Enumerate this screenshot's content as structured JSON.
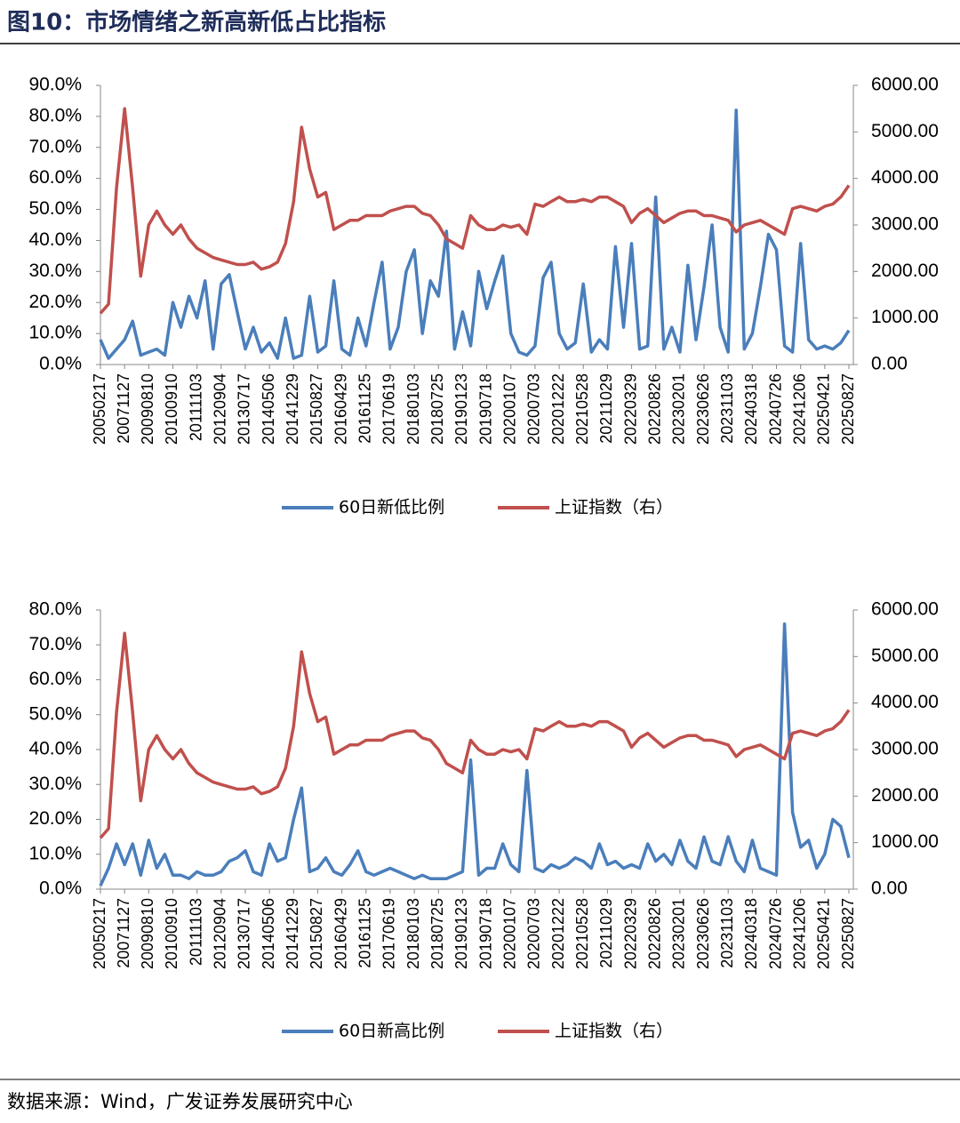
{
  "title": "图10：市场情绪之新高新低占比指标",
  "source": "数据来源：Wind，广发证券发展研究中心",
  "chart_data": [
    {
      "type": "line",
      "categories": [
        "20050217",
        null,
        null,
        "20071127",
        null,
        null,
        "20090810",
        null,
        null,
        "20100910",
        null,
        null,
        "20111103",
        null,
        null,
        "20120904",
        null,
        null,
        "20130717",
        null,
        null,
        "20140506",
        null,
        null,
        "20141229",
        null,
        null,
        "20150827",
        null,
        null,
        "20160429",
        null,
        null,
        "20161125",
        null,
        null,
        "20170619",
        null,
        null,
        "20180103",
        null,
        null,
        "20180725",
        null,
        null,
        "20190123",
        null,
        null,
        "20190718",
        null,
        null,
        "20200107",
        null,
        null,
        "20200703",
        null,
        null,
        "20201222",
        null,
        null,
        "20210528",
        null,
        null,
        "20211029",
        null,
        null,
        "20220329",
        null,
        null,
        "20220826",
        null,
        null,
        "20230201",
        null,
        null,
        "20230626",
        null,
        null,
        "20231103",
        null,
        null,
        "20240318",
        null,
        null,
        "20240726",
        null,
        null,
        "20241206",
        null,
        null,
        "20250421",
        null,
        null,
        "20250827"
      ],
      "series": [
        {
          "name": "60日新低比例",
          "color": "#4a7ebb",
          "axis": "y",
          "values": [
            8,
            2,
            5,
            8,
            14,
            3,
            4,
            5,
            3,
            20,
            12,
            22,
            15,
            27,
            5,
            26,
            29,
            17,
            5,
            12,
            4,
            7,
            2,
            15,
            2,
            3,
            22,
            4,
            6,
            27,
            5,
            3,
            15,
            6,
            20,
            33,
            5,
            12,
            30,
            37,
            10,
            27,
            22,
            43,
            5,
            17,
            6,
            30,
            18,
            27,
            35,
            10,
            4,
            3,
            6,
            28,
            33,
            10,
            5,
            7,
            26,
            4,
            8,
            5,
            38,
            12,
            39,
            5,
            6,
            54,
            5,
            12,
            4,
            32,
            8,
            25,
            45,
            12,
            4,
            82,
            5,
            10,
            25,
            42,
            37,
            6,
            4,
            39,
            8,
            5,
            6,
            5,
            7,
            11
          ]
        },
        {
          "name": "上证指数（右）",
          "color": "#c0504d",
          "axis": "y2",
          "values": [
            1100,
            1300,
            3800,
            5500,
            3800,
            1900,
            3000,
            3300,
            3000,
            2800,
            3000,
            2700,
            2500,
            2400,
            2300,
            2250,
            2200,
            2150,
            2150,
            2200,
            2050,
            2100,
            2200,
            2600,
            3500,
            5100,
            4200,
            3600,
            3700,
            2900,
            3000,
            3100,
            3100,
            3200,
            3200,
            3200,
            3300,
            3350,
            3400,
            3400,
            3250,
            3200,
            3000,
            2700,
            2600,
            2500,
            3200,
            3000,
            2900,
            2900,
            3000,
            2950,
            3000,
            2800,
            3450,
            3400,
            3500,
            3600,
            3500,
            3500,
            3550,
            3500,
            3600,
            3600,
            3500,
            3400,
            3050,
            3250,
            3350,
            3200,
            3050,
            3150,
            3250,
            3300,
            3300,
            3200,
            3200,
            3150,
            3100,
            2850,
            3000,
            3050,
            3100,
            3000,
            2900,
            2800,
            3350,
            3400,
            3350,
            3300,
            3400,
            3450,
            3600,
            3850
          ]
        }
      ],
      "ylim": [
        0,
        90
      ],
      "yticks": [
        {
          "value": 0,
          "label": "0.0%"
        },
        {
          "value": 10,
          "label": "10.0%"
        },
        {
          "value": 20,
          "label": "20.0%"
        },
        {
          "value": 30,
          "label": "30.0%"
        },
        {
          "value": 40,
          "label": "40.0%"
        },
        {
          "value": 50,
          "label": "50.0%"
        },
        {
          "value": 60,
          "label": "60.0%"
        },
        {
          "value": 70,
          "label": "70.0%"
        },
        {
          "value": 80,
          "label": "80.0%"
        },
        {
          "value": 90,
          "label": "90.0%"
        }
      ],
      "y2lim": [
        0,
        6000
      ],
      "y2ticks": [
        {
          "value": 0,
          "label": "0.00"
        },
        {
          "value": 1000,
          "label": "1000.00"
        },
        {
          "value": 2000,
          "label": "2000.00"
        },
        {
          "value": 3000,
          "label": "3000.00"
        },
        {
          "value": 4000,
          "label": "4000.00"
        },
        {
          "value": 5000,
          "label": "5000.00"
        },
        {
          "value": 6000,
          "label": "6000.00"
        }
      ],
      "legend": "bottom"
    },
    {
      "type": "line",
      "categories": [
        "20050217",
        null,
        null,
        "20071127",
        null,
        null,
        "20090810",
        null,
        null,
        "20100910",
        null,
        null,
        "20111103",
        null,
        null,
        "20120904",
        null,
        null,
        "20130717",
        null,
        null,
        "20140506",
        null,
        null,
        "20141229",
        null,
        null,
        "20150827",
        null,
        null,
        "20160429",
        null,
        null,
        "20161125",
        null,
        null,
        "20170619",
        null,
        null,
        "20180103",
        null,
        null,
        "20180725",
        null,
        null,
        "20190123",
        null,
        null,
        "20190718",
        null,
        null,
        "20200107",
        null,
        null,
        "20200703",
        null,
        null,
        "20201222",
        null,
        null,
        "20210528",
        null,
        null,
        "20211029",
        null,
        null,
        "20220329",
        null,
        null,
        "20220826",
        null,
        null,
        "20230201",
        null,
        null,
        "20230626",
        null,
        null,
        "20231103",
        null,
        null,
        "20240318",
        null,
        null,
        "20240726",
        null,
        null,
        "20241206",
        null,
        null,
        "20250421",
        null,
        null,
        "20250827"
      ],
      "series": [
        {
          "name": "60日新高比例",
          "color": "#4a7ebb",
          "axis": "y",
          "values": [
            1,
            6,
            13,
            7,
            13,
            4,
            14,
            6,
            10,
            4,
            4,
            3,
            5,
            4,
            4,
            5,
            8,
            9,
            11,
            5,
            4,
            13,
            8,
            9,
            20,
            29,
            5,
            6,
            9,
            5,
            4,
            7,
            11,
            5,
            4,
            5,
            6,
            5,
            4,
            3,
            4,
            3,
            3,
            3,
            4,
            5,
            37,
            4,
            6,
            6,
            13,
            7,
            5,
            34,
            6,
            5,
            7,
            6,
            7,
            9,
            8,
            6,
            13,
            7,
            8,
            6,
            7,
            6,
            13,
            8,
            10,
            7,
            14,
            8,
            6,
            15,
            8,
            7,
            15,
            8,
            5,
            14,
            6,
            5,
            4,
            76,
            22,
            12,
            14,
            6,
            10,
            20,
            18,
            9
          ]
        },
        {
          "name": "上证指数（右）",
          "color": "#c0504d",
          "axis": "y2",
          "values": [
            1100,
            1300,
            3800,
            5500,
            3800,
            1900,
            3000,
            3300,
            3000,
            2800,
            3000,
            2700,
            2500,
            2400,
            2300,
            2250,
            2200,
            2150,
            2150,
            2200,
            2050,
            2100,
            2200,
            2600,
            3500,
            5100,
            4200,
            3600,
            3700,
            2900,
            3000,
            3100,
            3100,
            3200,
            3200,
            3200,
            3300,
            3350,
            3400,
            3400,
            3250,
            3200,
            3000,
            2700,
            2600,
            2500,
            3200,
            3000,
            2900,
            2900,
            3000,
            2950,
            3000,
            2800,
            3450,
            3400,
            3500,
            3600,
            3500,
            3500,
            3550,
            3500,
            3600,
            3600,
            3500,
            3400,
            3050,
            3250,
            3350,
            3200,
            3050,
            3150,
            3250,
            3300,
            3300,
            3200,
            3200,
            3150,
            3100,
            2850,
            3000,
            3050,
            3100,
            3000,
            2900,
            2800,
            3350,
            3400,
            3350,
            3300,
            3400,
            3450,
            3600,
            3850
          ]
        }
      ],
      "ylim": [
        0,
        80
      ],
      "yticks": [
        {
          "value": 0,
          "label": "0.0%"
        },
        {
          "value": 10,
          "label": "10.0%"
        },
        {
          "value": 20,
          "label": "20.0%"
        },
        {
          "value": 30,
          "label": "30.0%"
        },
        {
          "value": 40,
          "label": "40.0%"
        },
        {
          "value": 50,
          "label": "50.0%"
        },
        {
          "value": 60,
          "label": "60.0%"
        },
        {
          "value": 70,
          "label": "70.0%"
        },
        {
          "value": 80,
          "label": "80.0%"
        }
      ],
      "y2lim": [
        0,
        6000
      ],
      "y2ticks": [
        {
          "value": 0,
          "label": "0.00"
        },
        {
          "value": 1000,
          "label": "1000.00"
        },
        {
          "value": 2000,
          "label": "2000.00"
        },
        {
          "value": 3000,
          "label": "3000.00"
        },
        {
          "value": 4000,
          "label": "4000.00"
        },
        {
          "value": 5000,
          "label": "5000.00"
        },
        {
          "value": 6000,
          "label": "6000.00"
        }
      ],
      "legend": "bottom"
    }
  ]
}
